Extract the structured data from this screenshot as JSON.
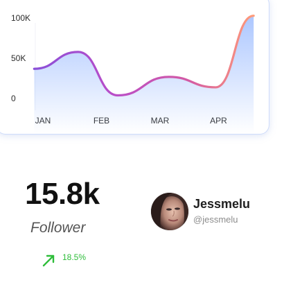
{
  "chart_data": {
    "type": "area",
    "categories": [
      "JAN",
      "FEB",
      "MAR",
      "APR"
    ],
    "yticks": [
      "100K",
      "50K",
      "0"
    ],
    "ylim": [
      0,
      100
    ],
    "points": [
      {
        "x": -0.15,
        "y": 36
      },
      {
        "x": 0.6,
        "y": 57
      },
      {
        "x": 1.28,
        "y": 3
      },
      {
        "x": 2.15,
        "y": 26
      },
      {
        "x": 2.95,
        "y": 13
      },
      {
        "x": 3.6,
        "y": 102
      }
    ],
    "line_gradient": [
      "#8a4fd8",
      "#b84ec9",
      "#d35aa4",
      "#ff9b78"
    ],
    "area_color": "#a8c4ff"
  },
  "stat": {
    "value": "15.8k",
    "label": "Follower",
    "growth": "18.5%",
    "growth_color": "#2ebd3a",
    "growth_icon": "arrow-up-right-icon"
  },
  "profile": {
    "name": "Jessmelu",
    "handle": "@jessmelu"
  }
}
